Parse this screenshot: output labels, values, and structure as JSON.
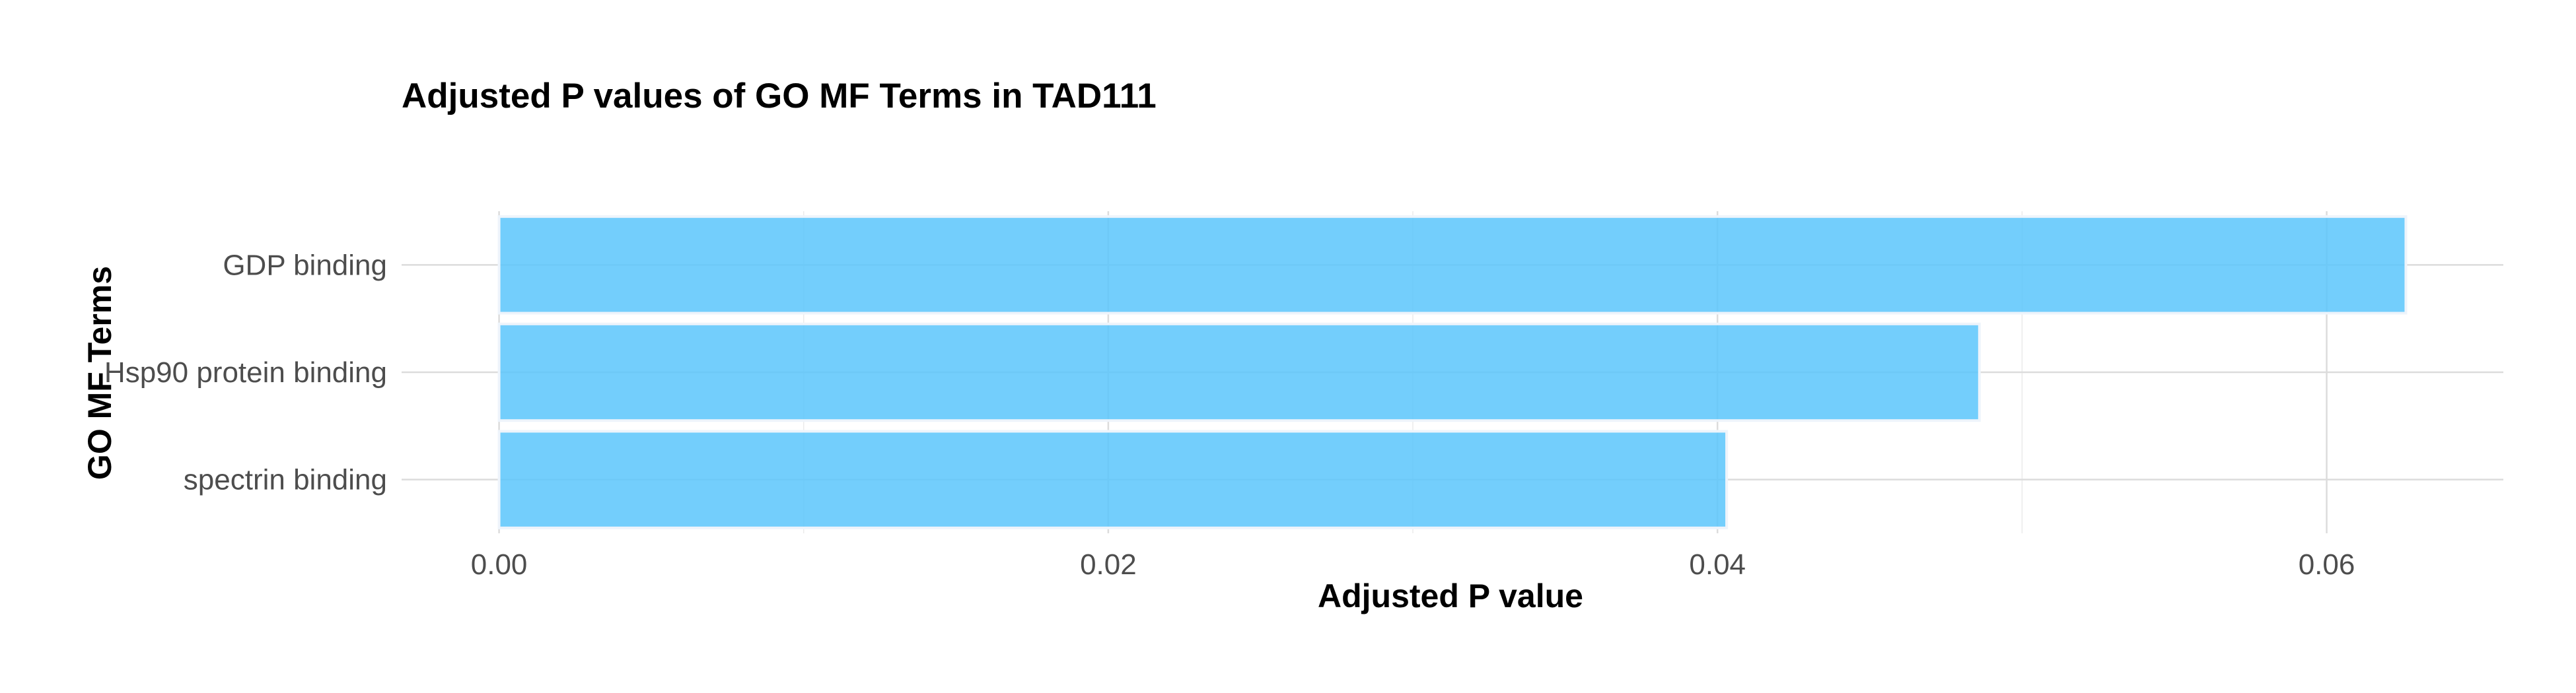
{
  "chart_data": {
    "type": "bar",
    "orientation": "horizontal",
    "title": "Adjusted P values of GO MF Terms in TAD111",
    "xlabel": "Adjusted P value",
    "ylabel": "GO MF Terms",
    "categories": [
      "GDP binding",
      "Hsp90 protein binding",
      "spectrin binding"
    ],
    "values": [
      0.0626,
      0.0486,
      0.0403
    ],
    "xlim": [
      -0.0032,
      0.0658
    ],
    "x_ticks": [
      0.0,
      0.02,
      0.04,
      0.06
    ],
    "x_tick_labels": [
      "0.00",
      "0.02",
      "0.04",
      "0.06"
    ],
    "x_minor_ticks": [
      0.01,
      0.03,
      0.05
    ],
    "grid": true,
    "legend": "none",
    "bar_color": "#5bc6fb"
  }
}
